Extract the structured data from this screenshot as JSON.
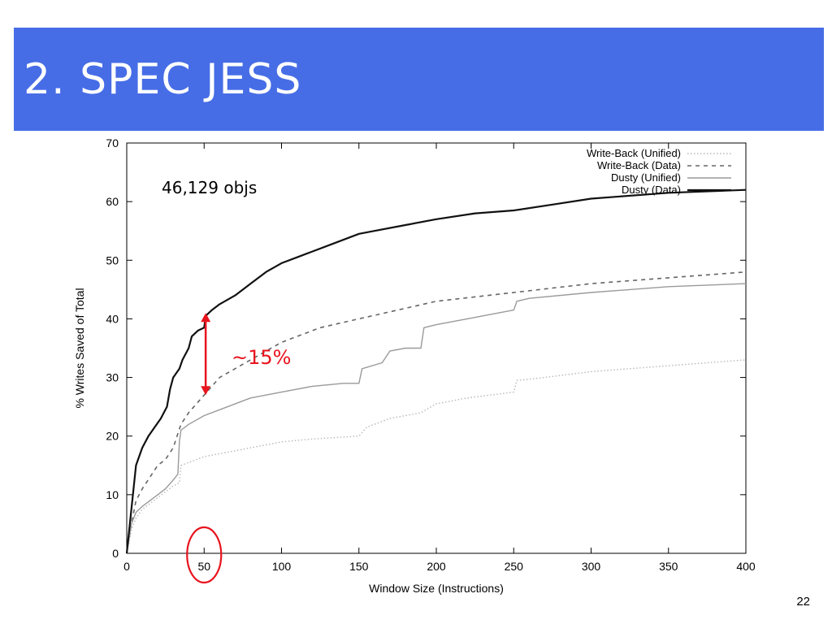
{
  "slide": {
    "title": "2. SPEC JESS",
    "page_number": "22"
  },
  "colors": {
    "title_bar": "#476de6",
    "annotation": "#e8141e"
  },
  "annotations": {
    "object_count": "46,129 objs",
    "gap_label": "~15%",
    "arrow_x": 51,
    "arrow_from_y": 27,
    "arrow_to_y": 41,
    "circle_center_x": 50
  },
  "chart_data": {
    "type": "line",
    "xlabel": "Window Size (Instructions)",
    "ylabel": "% Writes Saved of Total",
    "xlim": [
      0,
      400
    ],
    "ylim": [
      0,
      70
    ],
    "xticks": [
      0,
      50,
      100,
      150,
      200,
      250,
      300,
      350,
      400
    ],
    "yticks": [
      0,
      10,
      20,
      30,
      40,
      50,
      60,
      70
    ],
    "grid": false,
    "legend_position": "top-right",
    "series": [
      {
        "name": "Write-Back (Unified)",
        "style": "dotted",
        "color": "#b8b8b8",
        "x": [
          0,
          3,
          6,
          10,
          15,
          20,
          25,
          30,
          34,
          35,
          40,
          50,
          60,
          70,
          80,
          100,
          120,
          150,
          155,
          170,
          190,
          200,
          220,
          250,
          252,
          270,
          300,
          350,
          400
        ],
        "y": [
          0,
          4,
          6,
          7.5,
          8.5,
          9.5,
          10.5,
          11.5,
          12,
          15,
          15.5,
          16.5,
          17,
          17.5,
          18,
          19,
          19.5,
          20,
          21.5,
          23,
          24,
          25.5,
          26.5,
          27.5,
          29.5,
          30,
          31,
          32,
          33
        ]
      },
      {
        "name": "Write-Back (Data)",
        "style": "dashed",
        "color": "#666666",
        "x": [
          0,
          3,
          6,
          10,
          15,
          20,
          25,
          30,
          35,
          40,
          50,
          60,
          80,
          100,
          125,
          150,
          175,
          200,
          250,
          300,
          350,
          400
        ],
        "y": [
          0,
          5,
          9,
          11,
          13,
          15,
          16,
          18,
          22,
          24,
          27,
          30,
          33,
          36,
          38.5,
          40,
          41.5,
          43,
          44.5,
          46,
          47,
          48
        ]
      },
      {
        "name": "Dusty (Unified)",
        "style": "solid",
        "color": "#9a9a9a",
        "x": [
          0,
          3,
          6,
          10,
          15,
          20,
          25,
          30,
          33,
          34,
          35,
          40,
          50,
          60,
          80,
          100,
          120,
          140,
          150,
          152,
          165,
          170,
          180,
          190,
          192,
          200,
          220,
          240,
          250,
          252,
          260,
          300,
          350,
          400
        ],
        "y": [
          0,
          5,
          7,
          8,
          9,
          10,
          11,
          12.5,
          13.5,
          19,
          21,
          22,
          23.5,
          24.5,
          26.5,
          27.5,
          28.5,
          29,
          29,
          31.5,
          32.5,
          34.5,
          35,
          35,
          38.5,
          39,
          40,
          41,
          41.5,
          43,
          43.5,
          44.5,
          45.5,
          46
        ]
      },
      {
        "name": "Dusty (Data)",
        "style": "solid",
        "color": "#111111",
        "x": [
          0,
          2,
          4,
          6,
          8,
          10,
          14,
          18,
          22,
          26,
          28,
          30,
          34,
          36,
          40,
          42,
          46,
          50,
          51,
          55,
          60,
          70,
          80,
          90,
          100,
          110,
          120,
          130,
          150,
          160,
          180,
          200,
          225,
          250,
          275,
          300,
          350,
          400
        ],
        "y": [
          0,
          5,
          10,
          15,
          16.5,
          18,
          20,
          21.5,
          23,
          25,
          28,
          30,
          31.5,
          33,
          35,
          37,
          38,
          38.5,
          40.5,
          41.5,
          42.5,
          44,
          46,
          48,
          49.5,
          50.5,
          51.5,
          52.5,
          54.5,
          55,
          56,
          57,
          58,
          58.5,
          59.5,
          60.5,
          61.5,
          62
        ]
      }
    ]
  }
}
